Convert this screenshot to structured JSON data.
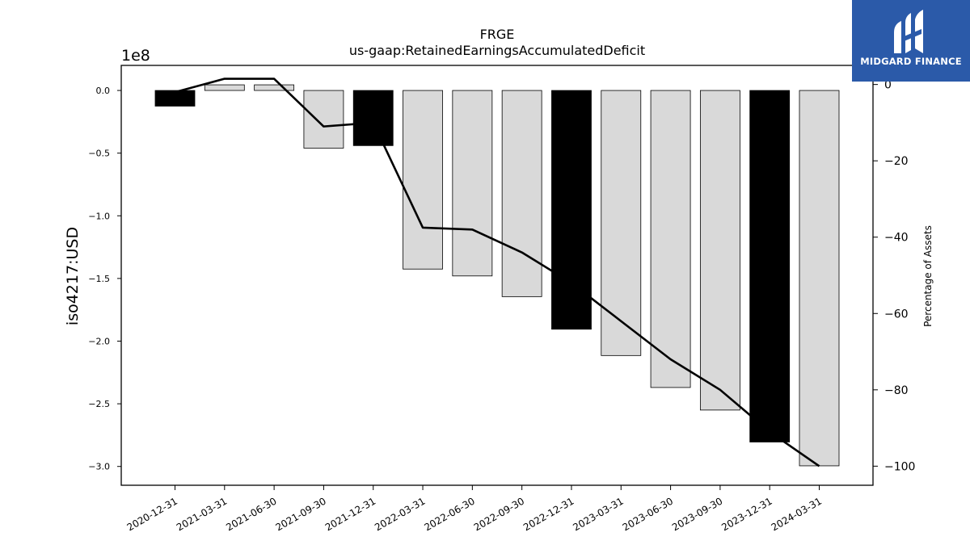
{
  "chart_data": {
    "type": "bar",
    "title": "FRGE",
    "subtitle": "us-gaap:RetainedEarningsAccumulatedDeficit",
    "ylabel": "iso4217:USD",
    "y_offset_label": "1e8",
    "y2label": "Percentage of Assets",
    "categories": [
      "2020-12-31",
      "2021-03-31",
      "2021-06-30",
      "2021-09-30",
      "2021-12-31",
      "2022-03-31",
      "2022-06-30",
      "2022-09-30",
      "2022-12-31",
      "2023-03-31",
      "2023-06-30",
      "2023-09-30",
      "2023-12-31",
      "2024-03-31"
    ],
    "bar_values": [
      -12500000,
      4500000,
      4500000,
      -46000000,
      -44000000,
      -142500000,
      -148000000,
      -164500000,
      -190500000,
      -211500000,
      -237000000,
      -255000000,
      -280500000,
      -299500000
    ],
    "bar_colors": [
      "#000000",
      "#d9d9d9",
      "#d9d9d9",
      "#d9d9d9",
      "#000000",
      "#d9d9d9",
      "#d9d9d9",
      "#d9d9d9",
      "#000000",
      "#d9d9d9",
      "#d9d9d9",
      "#d9d9d9",
      "#000000",
      "#d9d9d9"
    ],
    "line_values": [
      -2,
      1.5,
      1.5,
      -11,
      -10,
      -37.5,
      -38,
      -44,
      -52,
      -62,
      -72,
      -80,
      -91,
      -100
    ],
    "ylim": [
      -315000000.0,
      20000000.0
    ],
    "y2lim": [
      -105,
      5
    ],
    "yticks": [
      0.0,
      -0.5,
      -1.0,
      -1.5,
      -2.0,
      -2.5,
      -3.0
    ],
    "ytick_labels": [
      "0.0",
      "−0.5",
      "−1.0",
      "−1.5",
      "−2.0",
      "−2.5",
      "−3.0"
    ],
    "y2ticks": [
      0,
      -20,
      -40,
      -60,
      -80,
      -100
    ],
    "y2tick_labels": [
      "0",
      "−20",
      "−40",
      "−60",
      "−80",
      "−100"
    ],
    "grid": false,
    "legend": false
  },
  "logo": {
    "text": "MIDGARD FINANCE",
    "color": "#2b5aa9"
  }
}
